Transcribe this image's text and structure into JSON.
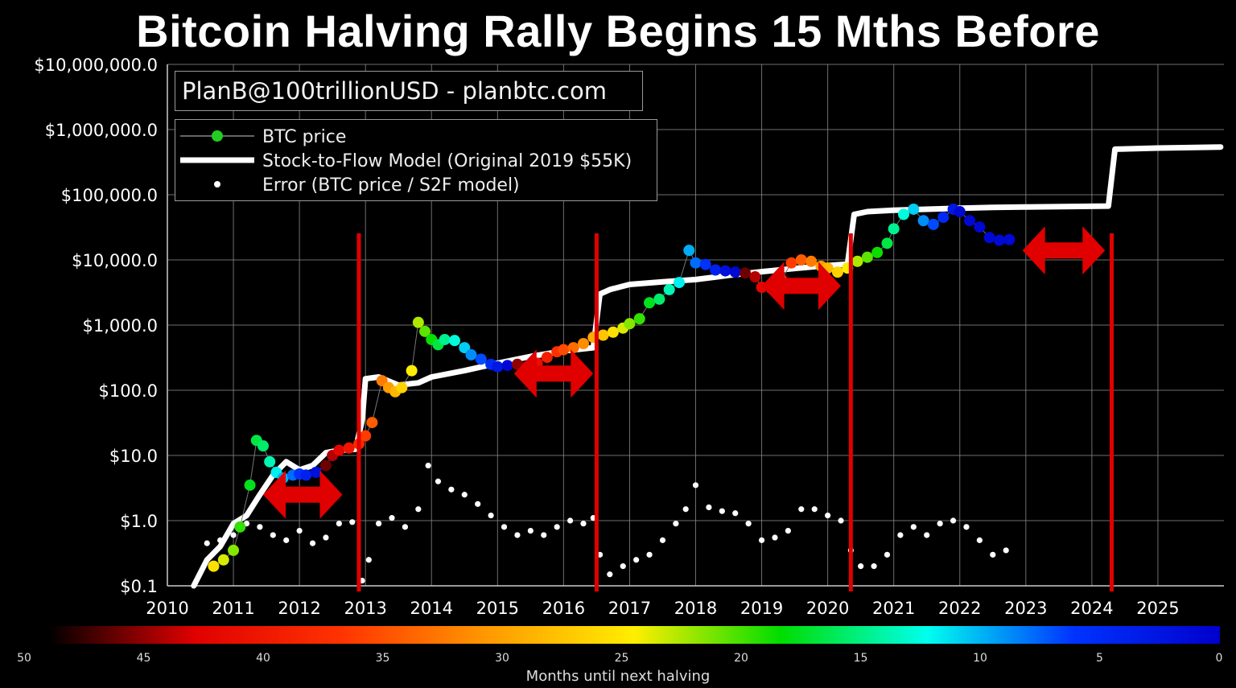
{
  "title": "Bitcoin Halving Rally Begins 15 Mths Before",
  "watermark": "PlanB@100trillionUSD  -  planbtc.com",
  "legend": {
    "btc_price": "BTC price",
    "s2f_model": "Stock-to-Flow Model (Original 2019 $55K)",
    "error": "Error (BTC price / S2F model)"
  },
  "colors": {
    "background": "#000000",
    "grid": "#8a8a8a",
    "model_line": "#ffffff",
    "error_dots": "#ffffff",
    "halving_lines": "#e00000",
    "arrows": "#e00000",
    "legend_btc_dot": "#22cc22"
  },
  "colorbar": {
    "label": "Months until next halving",
    "ticks": [
      "50",
      "45",
      "40",
      "35",
      "30",
      "25",
      "20",
      "15",
      "10",
      "5",
      "0"
    ],
    "stops": [
      "#000000",
      "#e00000",
      "#ff3300",
      "#ff9900",
      "#ffee00",
      "#00dd00",
      "#00ffee",
      "#0033ff",
      "#0000cc"
    ]
  },
  "chart_data": {
    "type": "scatter",
    "title": "Bitcoin Halving Rally Begins 15 Mths Before",
    "xlabel": "",
    "ylabel": "",
    "xlim": [
      2010,
      2026
    ],
    "ylim": [
      0.1,
      10000000
    ],
    "y_scale": "log",
    "grid": true,
    "legend_position": "top-left",
    "x_ticks": [
      "2010",
      "2011",
      "2012",
      "2013",
      "2014",
      "2015",
      "2016",
      "2017",
      "2018",
      "2019",
      "2020",
      "2021",
      "2022",
      "2023",
      "2024",
      "2025"
    ],
    "y_ticks": [
      "$0.1",
      "$1.0",
      "$10.0",
      "$100.0",
      "$1,000.0",
      "$10,000.0",
      "$100,000.0",
      "$1,000,000.0",
      "$10,000,000.0"
    ],
    "halvings": [
      2012.9,
      2016.5,
      2020.35,
      2024.3
    ],
    "arrows": [
      {
        "from": 2011.45,
        "to": 2012.65,
        "y": 2.5
      },
      {
        "from": 2015.25,
        "to": 2016.45,
        "y": 180
      },
      {
        "from": 2019.0,
        "to": 2020.2,
        "y": 4000
      },
      {
        "from": 2022.95,
        "to": 2024.2,
        "y": 14000
      }
    ],
    "series": [
      {
        "name": "BTC price",
        "x": [
          2010.7,
          2010.85,
          2011.0,
          2011.1,
          2011.25,
          2011.35,
          2011.45,
          2011.55,
          2011.65,
          2011.75,
          2011.9,
          2012.0,
          2012.1,
          2012.25,
          2012.4,
          2012.5,
          2012.6,
          2012.75,
          2012.9,
          2013.0,
          2013.1,
          2013.25,
          2013.35,
          2013.45,
          2013.55,
          2013.7,
          2013.8,
          2013.9,
          2014.0,
          2014.1,
          2014.2,
          2014.35,
          2014.5,
          2014.6,
          2014.75,
          2014.9,
          2015.0,
          2015.15,
          2015.3,
          2015.45,
          2015.6,
          2015.75,
          2015.9,
          2016.0,
          2016.15,
          2016.3,
          2016.45,
          2016.6,
          2016.75,
          2016.9,
          2017.0,
          2017.15,
          2017.3,
          2017.45,
          2017.6,
          2017.75,
          2017.9,
          2018.0,
          2018.15,
          2018.3,
          2018.45,
          2018.6,
          2018.75,
          2018.9,
          2019.0,
          2019.15,
          2019.3,
          2019.45,
          2019.6,
          2019.75,
          2019.9,
          2020.0,
          2020.15,
          2020.3,
          2020.45,
          2020.6,
          2020.75,
          2020.9,
          2021.0,
          2021.15,
          2021.3,
          2021.45,
          2021.6,
          2021.75,
          2021.9,
          2022.0,
          2022.15,
          2022.3,
          2022.45,
          2022.6,
          2022.75
        ],
        "y": [
          0.2,
          0.25,
          0.35,
          0.8,
          3.5,
          17,
          14,
          8,
          5.5,
          4.5,
          5,
          5.2,
          5,
          5.5,
          7,
          10,
          12,
          13,
          15,
          20,
          32,
          140,
          110,
          95,
          110,
          200,
          1100,
          800,
          600,
          500,
          600,
          580,
          450,
          350,
          300,
          250,
          230,
          240,
          250,
          230,
          260,
          320,
          390,
          420,
          450,
          520,
          650,
          700,
          780,
          900,
          1050,
          1250,
          2200,
          2500,
          3500,
          4500,
          14000,
          9000,
          8500,
          7000,
          6800,
          6500,
          6300,
          5500,
          3800,
          3600,
          5000,
          9000,
          10000,
          9500,
          8000,
          7500,
          6500,
          7500,
          9500,
          11000,
          13000,
          18000,
          30000,
          50000,
          60000,
          40000,
          35000,
          45000,
          60000,
          55000,
          40000,
          32000,
          22000,
          20000,
          20500
        ],
        "months_to_halving": [
          26,
          24,
          22,
          20,
          18,
          17,
          16,
          14,
          12,
          10,
          8,
          6,
          4,
          2,
          47,
          45,
          43,
          41,
          39,
          37,
          35,
          33,
          31,
          29,
          27,
          25,
          23,
          21,
          19,
          17,
          15,
          13,
          11,
          9,
          7,
          5,
          3,
          1,
          46,
          44,
          42,
          40,
          38,
          36,
          34,
          32,
          30,
          28,
          26,
          24,
          22,
          20,
          18,
          16,
          14,
          12,
          10,
          8,
          6,
          4,
          2,
          1,
          47,
          45,
          43,
          41,
          39,
          37,
          35,
          33,
          31,
          29,
          27,
          25,
          23,
          21,
          19,
          17,
          15,
          13,
          11,
          9,
          7,
          5,
          3,
          1,
          1,
          1,
          1,
          1,
          1
        ]
      },
      {
        "name": "Stock-to-Flow Model (Original 2019 $55K)",
        "x": [
          2010.4,
          2010.6,
          2010.8,
          2011.0,
          2011.2,
          2011.4,
          2011.6,
          2011.8,
          2012.0,
          2012.2,
          2012.4,
          2012.6,
          2012.85,
          2012.95,
          2013.0,
          2013.2,
          2013.5,
          2013.8,
          2014.0,
          2014.5,
          2015.0,
          2015.5,
          2016.0,
          2016.45,
          2016.55,
          2016.7,
          2017.0,
          2017.5,
          2018.0,
          2018.5,
          2019.0,
          2019.5,
          2020.0,
          2020.3,
          2020.4,
          2020.6,
          2021.0,
          2021.5,
          2022.0,
          2022.5,
          2023.0,
          2024.25,
          2024.35,
          2025.0,
          2025.95
        ],
        "y": [
          0.1,
          0.25,
          0.4,
          0.9,
          1.2,
          2.5,
          5,
          8,
          6,
          7,
          11,
          12,
          12.5,
          35,
          150,
          160,
          120,
          130,
          160,
          200,
          260,
          330,
          400,
          450,
          3000,
          3500,
          4200,
          4600,
          5000,
          5800,
          6600,
          7400,
          8200,
          8600,
          50000,
          55000,
          58000,
          60000,
          62000,
          64000,
          65000,
          67000,
          500000,
          520000,
          540000
        ]
      },
      {
        "name": "Error (BTC price / S2F model)",
        "x": [
          2010.6,
          2010.8,
          2011.0,
          2011.2,
          2011.4,
          2011.6,
          2011.8,
          2012.0,
          2012.2,
          2012.4,
          2012.6,
          2012.8,
          2012.95,
          2013.05,
          2013.2,
          2013.4,
          2013.6,
          2013.8,
          2013.95,
          2014.1,
          2014.3,
          2014.5,
          2014.7,
          2014.9,
          2015.1,
          2015.3,
          2015.5,
          2015.7,
          2015.9,
          2016.1,
          2016.3,
          2016.45,
          2016.55,
          2016.7,
          2016.9,
          2017.1,
          2017.3,
          2017.5,
          2017.7,
          2017.85,
          2018.0,
          2018.2,
          2018.4,
          2018.6,
          2018.8,
          2019.0,
          2019.2,
          2019.4,
          2019.6,
          2019.8,
          2020.0,
          2020.2,
          2020.35,
          2020.5,
          2020.7,
          2020.9,
          2021.1,
          2021.3,
          2021.5,
          2021.7,
          2021.9,
          2022.1,
          2022.3,
          2022.5,
          2022.7
        ],
        "y": [
          0.45,
          0.5,
          0.6,
          0.9,
          0.8,
          0.6,
          0.5,
          0.7,
          0.45,
          0.55,
          0.9,
          0.95,
          0.12,
          0.25,
          0.9,
          1.1,
          0.8,
          1.5,
          7,
          4,
          3,
          2.5,
          1.8,
          1.2,
          0.8,
          0.6,
          0.7,
          0.6,
          0.8,
          1.0,
          0.9,
          1.1,
          0.3,
          0.15,
          0.2,
          0.25,
          0.3,
          0.5,
          0.9,
          1.5,
          3.5,
          1.6,
          1.4,
          1.3,
          0.9,
          0.5,
          0.55,
          0.7,
          1.5,
          1.5,
          1.2,
          1.0,
          0.35,
          0.2,
          0.2,
          0.3,
          0.6,
          0.8,
          0.6,
          0.9,
          1.0,
          0.8,
          0.5,
          0.3,
          0.35
        ]
      }
    ]
  }
}
